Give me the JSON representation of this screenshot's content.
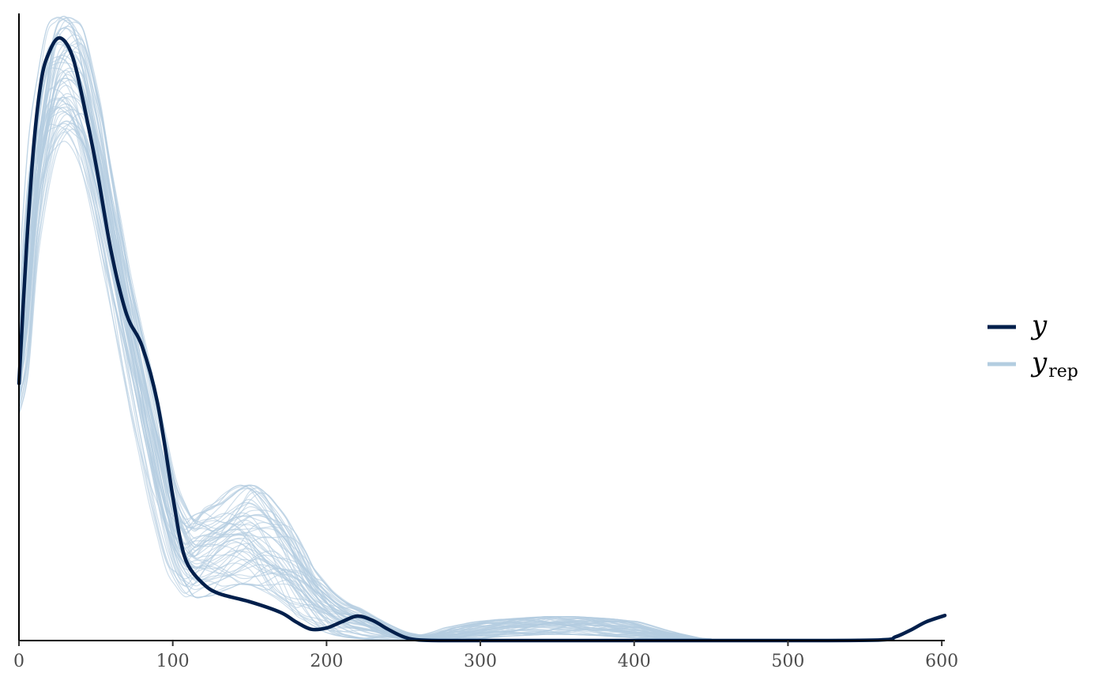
{
  "chart_data": {
    "type": "line",
    "title": "",
    "xlabel": "",
    "ylabel": "",
    "xlim": [
      0,
      602
    ],
    "ylim": [
      0,
      1
    ],
    "x_ticks": [
      0,
      100,
      200,
      300,
      400,
      500,
      600
    ],
    "x_tick_labels": [
      "0",
      "100",
      "200",
      "300",
      "400",
      "500",
      "600"
    ],
    "y_axis_ticks_shown": false,
    "grid": false,
    "legend_position": "right",
    "legend": [
      {
        "symbol": "y",
        "subscript": "",
        "color": "#011f4b",
        "series": "y"
      },
      {
        "symbol": "y",
        "subscript": "rep",
        "color": "#b3cde0",
        "series": "y_rep"
      }
    ],
    "series": [
      {
        "name": "y",
        "color": "#011f4b",
        "x": [
          0,
          5,
          10,
          15,
          20,
          25,
          30,
          35,
          40,
          50,
          60,
          70,
          80,
          90,
          100,
          105,
          110,
          120,
          130,
          150,
          170,
          180,
          190,
          200,
          210,
          220,
          230,
          240,
          250,
          260,
          280,
          300,
          400,
          500,
          560,
          570,
          580,
          590,
          602
        ],
        "values": [
          0.41,
          0.63,
          0.8,
          0.9,
          0.94,
          0.96,
          0.955,
          0.93,
          0.88,
          0.76,
          0.62,
          0.52,
          0.47,
          0.38,
          0.23,
          0.16,
          0.12,
          0.09,
          0.075,
          0.062,
          0.045,
          0.03,
          0.018,
          0.02,
          0.03,
          0.039,
          0.032,
          0.018,
          0.006,
          0.001,
          0.0,
          0.0,
          0.0,
          0.0,
          0.001,
          0.006,
          0.017,
          0.03,
          0.04
        ]
      },
      {
        "name": "y_rep (representative envelope)",
        "color": "#b3cde0",
        "x": [
          0,
          10,
          20,
          30,
          40,
          50,
          60,
          70,
          80,
          90,
          100,
          110,
          120,
          130,
          140,
          150,
          160,
          170,
          180,
          190,
          200,
          210,
          220,
          230,
          240,
          250,
          260,
          270,
          280,
          300,
          320,
          340,
          360,
          380,
          400,
          420,
          440,
          460,
          602
        ],
        "values_low": [
          0.36,
          0.65,
          0.77,
          0.8,
          0.77,
          0.68,
          0.56,
          0.44,
          0.32,
          0.2,
          0.11,
          0.07,
          0.07,
          0.08,
          0.09,
          0.09,
          0.08,
          0.065,
          0.045,
          0.03,
          0.015,
          0.008,
          0.004,
          0.002,
          0.0,
          0.0,
          0.0,
          0.0,
          0.0,
          0.003,
          0.007,
          0.01,
          0.01,
          0.008,
          0.004,
          0.001,
          0.0,
          0.0,
          0.0
        ],
        "values_high": [
          0.45,
          0.8,
          0.97,
          1.0,
          0.97,
          0.86,
          0.71,
          0.57,
          0.46,
          0.35,
          0.24,
          0.19,
          0.21,
          0.22,
          0.24,
          0.25,
          0.23,
          0.2,
          0.16,
          0.11,
          0.08,
          0.06,
          0.05,
          0.035,
          0.022,
          0.012,
          0.008,
          0.011,
          0.02,
          0.03,
          0.035,
          0.038,
          0.038,
          0.035,
          0.03,
          0.015,
          0.004,
          0.0,
          0.0
        ]
      }
    ]
  }
}
